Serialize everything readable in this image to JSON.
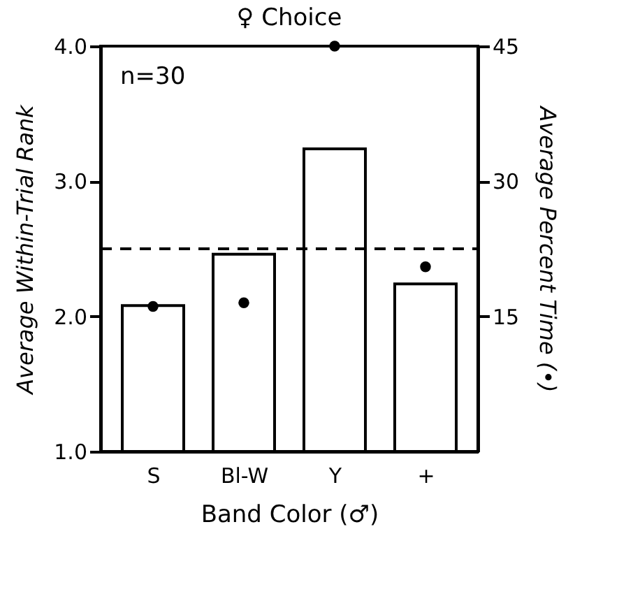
{
  "chart_data": {
    "type": "bar",
    "title": "♀ Choice",
    "xlabel": "Band Color (♂)",
    "ylabel": "Average Within-Trial Rank",
    "y2label": "Average Percent Time (•)",
    "categories": [
      "S",
      "Bl-W",
      "Y",
      "+"
    ],
    "series": [
      {
        "color": "#ffffff",
        "values": [
          2.08,
          2.46,
          3.24,
          2.24
        ]
      },
      {
        "type": "scatter",
        "axis": "y2",
        "color": "#000000",
        "marker": "circle",
        "values": [
          16.1,
          16.5,
          45,
          20.5
        ]
      }
    ],
    "ylim": [
      1.0,
      4.0
    ],
    "yticks": [
      {
        "value": 1,
        "label": "1.0"
      },
      {
        "value": 2,
        "label": "2.0"
      },
      {
        "value": 3,
        "label": "3.0"
      },
      {
        "value": 4,
        "label": "4.0"
      }
    ],
    "y2lim": [
      0,
      45
    ],
    "y2ticks": [
      15,
      30,
      45
    ],
    "ref_lines": [
      {
        "axis": "y",
        "value": 2.5,
        "line_style": "dashed",
        "color": "#000000"
      }
    ],
    "annotations": [
      "n=30"
    ],
    "grid": false
  }
}
